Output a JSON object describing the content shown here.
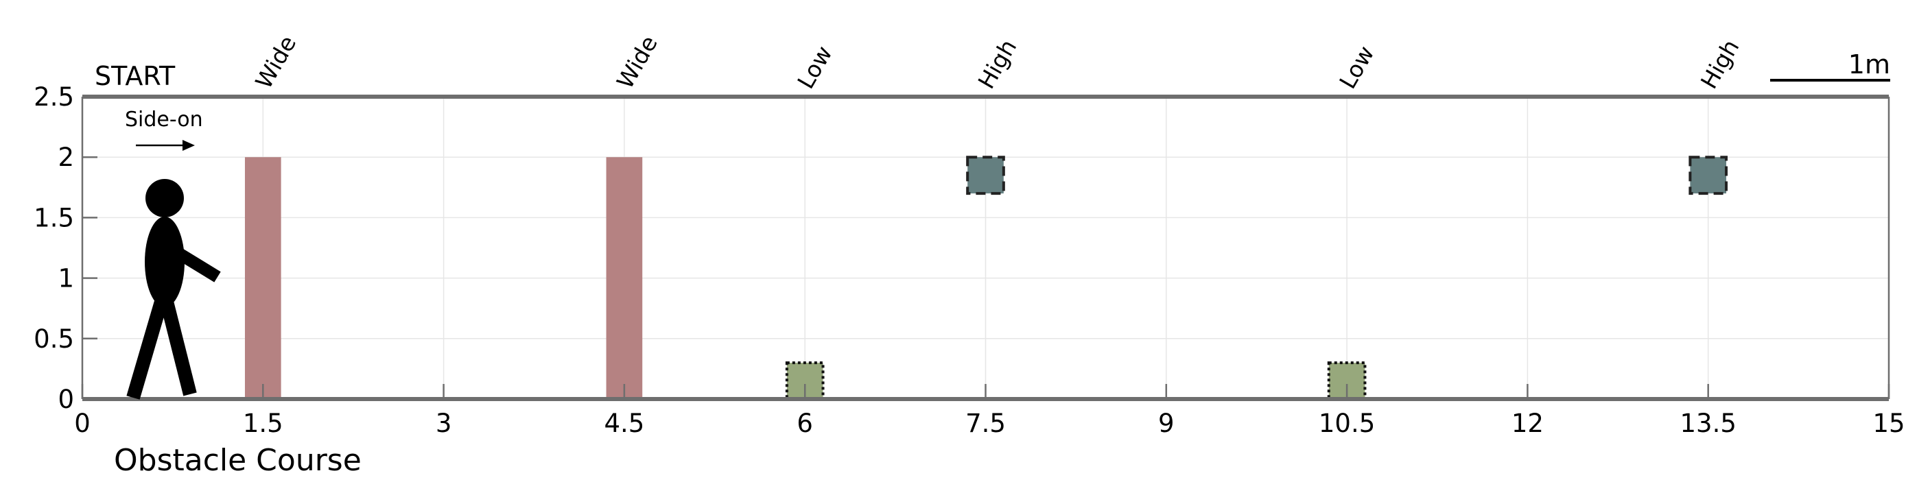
{
  "chart_data": {
    "type": "diagram",
    "title": "Obstacle Course",
    "start_label": "START",
    "direction_label": "Side-on",
    "scale_label": "1m",
    "xlim": [
      0,
      15
    ],
    "ylim": [
      0,
      2.5
    ],
    "x_ticks": [
      {
        "value": 0,
        "label": "0"
      },
      {
        "value": 1.5,
        "label": "1.5"
      },
      {
        "value": 3,
        "label": "3"
      },
      {
        "value": 4.5,
        "label": "4.5"
      },
      {
        "value": 6,
        "label": "6"
      },
      {
        "value": 7.5,
        "label": "7.5"
      },
      {
        "value": 9,
        "label": "9"
      },
      {
        "value": 10.5,
        "label": "10.5"
      },
      {
        "value": 12,
        "label": "12"
      },
      {
        "value": 13.5,
        "label": "13.5"
      },
      {
        "value": 15,
        "label": "15"
      }
    ],
    "y_ticks": [
      {
        "value": 0,
        "label": "0"
      },
      {
        "value": 0.5,
        "label": "0.5"
      },
      {
        "value": 1,
        "label": "1"
      },
      {
        "value": 1.5,
        "label": "1.5"
      },
      {
        "value": 2,
        "label": "2"
      },
      {
        "value": 2.5,
        "label": "2.5"
      }
    ],
    "grid": true,
    "obstacles": [
      {
        "type": "Wide",
        "x": 1.5,
        "y_bottom": 0,
        "y_top": 2,
        "color": "#b58282",
        "border": "none"
      },
      {
        "type": "Wide",
        "x": 4.5,
        "y_bottom": 0,
        "y_top": 2,
        "color": "#b58282",
        "border": "none"
      },
      {
        "type": "Low",
        "x": 6,
        "y_bottom": 0,
        "y_top": 0.3,
        "color": "#97a87c",
        "border": "dotted"
      },
      {
        "type": "High",
        "x": 7.5,
        "y_bottom": 1.7,
        "y_top": 2,
        "color": "#647f80",
        "border": "dashed"
      },
      {
        "type": "Low",
        "x": 10.5,
        "y_bottom": 0,
        "y_top": 0.3,
        "color": "#97a87c",
        "border": "dotted"
      },
      {
        "type": "High",
        "x": 13.5,
        "y_bottom": 1.7,
        "y_top": 2,
        "color": "#647f80",
        "border": "dashed"
      }
    ],
    "obstacle_width": 0.3
  }
}
